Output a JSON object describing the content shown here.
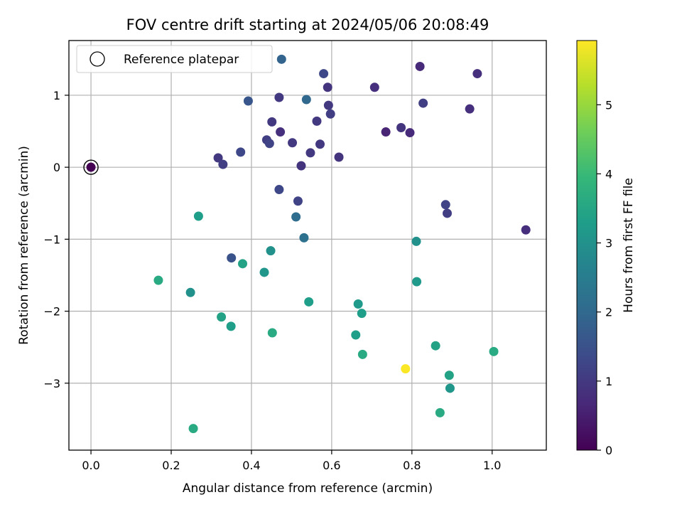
{
  "chart_data": {
    "type": "scatter",
    "title": "FOV centre drift starting at 2024/05/06 20:08:49",
    "xlabel": "Angular distance from reference (arcmin)",
    "ylabel": "Rotation from reference (arcmin)",
    "xlim": [
      -0.055,
      1.135
    ],
    "ylim": [
      -3.93,
      1.76
    ],
    "xticks": [
      0.0,
      0.2,
      0.4,
      0.6,
      0.8,
      1.0
    ],
    "xtick_labels": [
      "0.0",
      "0.2",
      "0.4",
      "0.6",
      "0.8",
      "1.0"
    ],
    "yticks": [
      -3,
      -2,
      -1,
      0,
      1
    ],
    "ytick_labels": [
      "−3",
      "−2",
      "−1",
      "0",
      "1"
    ],
    "grid": true,
    "legend": {
      "position": "top-left",
      "entries": [
        "Reference platepar"
      ]
    },
    "colorbar": {
      "label": "Hours from first FF file",
      "colormap": "viridis",
      "range": [
        0,
        5.93
      ],
      "ticks": [
        0,
        1,
        2,
        3,
        4,
        5
      ],
      "tick_labels": [
        "0",
        "1",
        "2",
        "3",
        "4",
        "5"
      ]
    },
    "reference_point": {
      "x": 0.0,
      "y": 0.0
    },
    "points": [
      {
        "x": 0.0,
        "y": 0.0,
        "h": 0.0
      },
      {
        "x": 0.475,
        "y": 1.5,
        "h": 1.9
      },
      {
        "x": 0.58,
        "y": 1.3,
        "h": 1.3
      },
      {
        "x": 0.82,
        "y": 1.4,
        "h": 0.7
      },
      {
        "x": 0.963,
        "y": 1.3,
        "h": 0.8
      },
      {
        "x": 0.59,
        "y": 1.11,
        "h": 0.9
      },
      {
        "x": 0.707,
        "y": 1.11,
        "h": 0.8
      },
      {
        "x": 0.469,
        "y": 0.97,
        "h": 1.0
      },
      {
        "x": 0.392,
        "y": 0.92,
        "h": 1.6
      },
      {
        "x": 0.537,
        "y": 0.94,
        "h": 2.0
      },
      {
        "x": 0.828,
        "y": 0.89,
        "h": 1.1
      },
      {
        "x": 0.592,
        "y": 0.86,
        "h": 1.0
      },
      {
        "x": 0.944,
        "y": 0.81,
        "h": 0.8
      },
      {
        "x": 0.597,
        "y": 0.74,
        "h": 1.1
      },
      {
        "x": 0.451,
        "y": 0.63,
        "h": 1.0
      },
      {
        "x": 0.563,
        "y": 0.64,
        "h": 1.0
      },
      {
        "x": 0.773,
        "y": 0.55,
        "h": 0.9
      },
      {
        "x": 0.735,
        "y": 0.49,
        "h": 0.6
      },
      {
        "x": 0.795,
        "y": 0.48,
        "h": 0.7
      },
      {
        "x": 0.472,
        "y": 0.49,
        "h": 0.8
      },
      {
        "x": 0.438,
        "y": 0.38,
        "h": 1.1
      },
      {
        "x": 0.445,
        "y": 0.33,
        "h": 1.2
      },
      {
        "x": 0.502,
        "y": 0.34,
        "h": 1.0
      },
      {
        "x": 0.571,
        "y": 0.32,
        "h": 1.0
      },
      {
        "x": 0.373,
        "y": 0.21,
        "h": 1.3
      },
      {
        "x": 0.547,
        "y": 0.2,
        "h": 1.0
      },
      {
        "x": 0.618,
        "y": 0.14,
        "h": 0.9
      },
      {
        "x": 0.317,
        "y": 0.13,
        "h": 1.0
      },
      {
        "x": 0.329,
        "y": 0.04,
        "h": 1.1
      },
      {
        "x": 0.524,
        "y": 0.02,
        "h": 0.9
      },
      {
        "x": 0.469,
        "y": -0.31,
        "h": 1.3
      },
      {
        "x": 0.516,
        "y": -0.47,
        "h": 1.2
      },
      {
        "x": 0.884,
        "y": -0.52,
        "h": 1.2
      },
      {
        "x": 0.888,
        "y": -0.64,
        "h": 1.1
      },
      {
        "x": 0.511,
        "y": -0.69,
        "h": 2.1
      },
      {
        "x": 1.084,
        "y": -0.87,
        "h": 0.8
      },
      {
        "x": 0.268,
        "y": -0.68,
        "h": 3.3
      },
      {
        "x": 0.531,
        "y": -0.98,
        "h": 2.2
      },
      {
        "x": 0.811,
        "y": -1.03,
        "h": 3.0
      },
      {
        "x": 0.35,
        "y": -1.26,
        "h": 1.5
      },
      {
        "x": 0.448,
        "y": -1.16,
        "h": 3.0
      },
      {
        "x": 0.378,
        "y": -1.34,
        "h": 3.4
      },
      {
        "x": 0.432,
        "y": -1.46,
        "h": 3.1
      },
      {
        "x": 0.168,
        "y": -1.57,
        "h": 3.6
      },
      {
        "x": 0.812,
        "y": -1.59,
        "h": 3.2
      },
      {
        "x": 0.248,
        "y": -1.74,
        "h": 3.0
      },
      {
        "x": 0.543,
        "y": -1.87,
        "h": 3.3
      },
      {
        "x": 0.666,
        "y": -1.9,
        "h": 3.2
      },
      {
        "x": 0.675,
        "y": -2.03,
        "h": 3.3
      },
      {
        "x": 0.325,
        "y": -2.08,
        "h": 3.4
      },
      {
        "x": 0.349,
        "y": -2.21,
        "h": 3.3
      },
      {
        "x": 0.452,
        "y": -2.3,
        "h": 3.6
      },
      {
        "x": 0.66,
        "y": -2.33,
        "h": 3.3
      },
      {
        "x": 0.859,
        "y": -2.48,
        "h": 3.4
      },
      {
        "x": 1.004,
        "y": -2.56,
        "h": 3.6
      },
      {
        "x": 0.677,
        "y": -2.6,
        "h": 3.6
      },
      {
        "x": 0.784,
        "y": -2.8,
        "h": 5.9
      },
      {
        "x": 0.893,
        "y": -2.89,
        "h": 3.4
      },
      {
        "x": 0.895,
        "y": -3.07,
        "h": 3.1
      },
      {
        "x": 0.87,
        "y": -3.41,
        "h": 3.6
      },
      {
        "x": 0.255,
        "y": -3.63,
        "h": 3.6
      }
    ]
  }
}
